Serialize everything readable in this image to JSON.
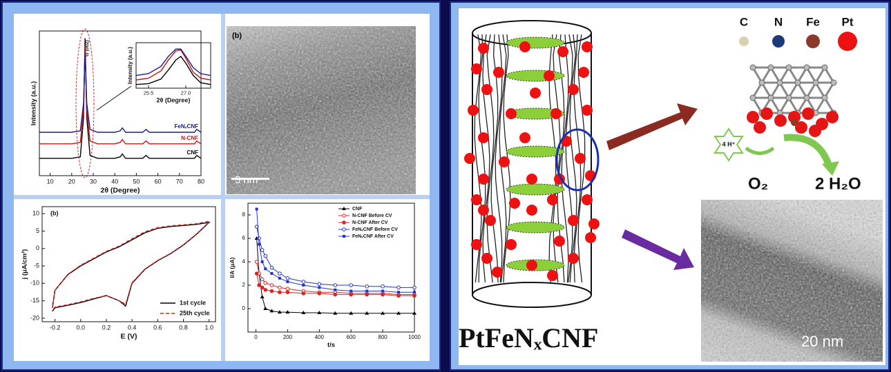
{
  "chart_data": [
    {
      "type": "line",
      "xlabel": "2θ (Degree)",
      "ylabel": "Intensity (a.u.)",
      "peak_label": "G (002)",
      "xlim": [
        5,
        80
      ],
      "xticks": [
        10,
        20,
        30,
        40,
        50,
        60,
        70,
        80
      ],
      "ylim": [
        0,
        100
      ],
      "legend": "inline",
      "x": [
        5,
        15,
        20,
        24,
        25.5,
        26.2,
        27,
        28.5,
        32,
        40,
        42.5,
        43.5,
        45,
        53,
        54.5,
        56,
        70,
        77,
        78,
        80
      ],
      "series": [
        {
          "name": "CNF",
          "color": "#000000",
          "values": [
            12,
            12,
            12,
            13,
            40,
            95,
            40,
            14,
            12,
            12,
            13,
            15,
            12,
            12,
            14,
            12,
            12,
            12,
            14,
            12
          ]
        },
        {
          "name": "N-CNF",
          "color": "#cc1111",
          "values": [
            22,
            22,
            22,
            23,
            45,
            90,
            45,
            24,
            22,
            22,
            23,
            25,
            22,
            22,
            24,
            22,
            22,
            22,
            24,
            22
          ]
        },
        {
          "name": "FeNₓCNF",
          "color": "#1a1a8c",
          "values": [
            30,
            30,
            30,
            31,
            50,
            85,
            50,
            32,
            30,
            30,
            31,
            33,
            30,
            30,
            32,
            30,
            30,
            30,
            32,
            30
          ]
        }
      ]
    },
    {
      "type": "line",
      "xlabel": "2θ (Degree)",
      "ylabel": "Intensity (a.u.)",
      "xlim": [
        25,
        28
      ],
      "xticks": [
        25.5,
        {
          "value": 27,
          "label": "27.0"
        }
      ],
      "ylim": [
        0,
        100
      ],
      "x": [
        25,
        25.5,
        26,
        26.3,
        26.6,
        26.8,
        27,
        27.3,
        27.6,
        28
      ],
      "series": [
        {
          "name": "CNF",
          "color": "#000000",
          "values": [
            8,
            10,
            20,
            40,
            62,
            70,
            55,
            28,
            12,
            8
          ]
        },
        {
          "name": "N-CNF",
          "color": "#cc1111",
          "values": [
            18,
            22,
            38,
            62,
            82,
            84,
            66,
            35,
            22,
            18
          ]
        },
        {
          "name": "FeNₓCNF",
          "color": "#1a1a8c",
          "values": [
            28,
            32,
            48,
            70,
            86,
            86,
            70,
            45,
            32,
            28
          ]
        }
      ]
    },
    {
      "type": "line",
      "xlabel": "E (V)",
      "ylabel": "j (μA/cm²)",
      "panel_label": "(b)",
      "xlim": [
        -0.3,
        1.05
      ],
      "xticks": [
        -0.2,
        {
          "value": 0,
          "label": "0.0"
        },
        0.2,
        0.4,
        0.6,
        0.8,
        {
          "value": 1,
          "label": "1.0"
        }
      ],
      "ylim": [
        -21,
        12
      ],
      "yticks": [
        10,
        5,
        0,
        -5,
        -10,
        -15,
        -20
      ],
      "legend": "lower right",
      "x": [
        -0.22,
        -0.2,
        -0.1,
        0,
        0.1,
        0.2,
        0.3,
        0.4,
        0.5,
        0.6,
        0.7,
        0.8,
        0.9,
        1.0,
        1.0,
        0.9,
        0.8,
        0.7,
        0.6,
        0.5,
        0.4,
        0.35,
        0.3,
        0.2,
        0.1,
        0,
        -0.1,
        -0.2,
        -0.22
      ],
      "series": [
        {
          "name": "1st cycle",
          "color": "#000000",
          "values": [
            -17,
            -12,
            -7.5,
            -5,
            -3,
            -1,
            0.5,
            2.5,
            4.5,
            5.8,
            6.3,
            6.6,
            6.9,
            7.5,
            7.5,
            4,
            1,
            -1.5,
            -3.5,
            -6,
            -10,
            -16.5,
            -15,
            -13.5,
            -14.5,
            -15.5,
            -16.3,
            -17,
            -18
          ]
        },
        {
          "name": "25th cycle",
          "color": "#dd2222",
          "dash": true,
          "values": [
            -17,
            -12,
            -7.4,
            -4.8,
            -2.8,
            -0.8,
            0.7,
            2.8,
            4.8,
            6,
            6.5,
            6.8,
            7.1,
            7.8,
            7.6,
            4.1,
            1.1,
            -1.4,
            -3.4,
            -5.9,
            -9.8,
            -16,
            -15,
            -13.5,
            -14.3,
            -15.3,
            -16.1,
            -16.8,
            -17.8
          ]
        }
      ]
    },
    {
      "type": "line",
      "xlabel": "t/s",
      "ylabel": "I/A (μA)",
      "xlim": [
        -50,
        1000
      ],
      "xticks": [
        0,
        200,
        400,
        600,
        800,
        1000
      ],
      "ylim": [
        -2,
        9
      ],
      "yticks": [
        0,
        2,
        4,
        6,
        8
      ],
      "legend": "upper right",
      "x": [
        5,
        20,
        40,
        60,
        100,
        150,
        200,
        300,
        400,
        500,
        600,
        700,
        800,
        900,
        1000
      ],
      "series": [
        {
          "name": "CNF",
          "color": "#000000",
          "marker": "triangle",
          "values": [
            6,
            3,
            1,
            0,
            -0.2,
            -0.3,
            -0.3,
            -0.35,
            -0.35,
            -0.4,
            -0.4,
            -0.4,
            -0.4,
            -0.4,
            -0.4
          ]
        },
        {
          "name": "N-CNF Before CV",
          "color": "#dd2222",
          "marker": "circle-open",
          "values": [
            4,
            3,
            2.5,
            2.2,
            2,
            1.8,
            1.7,
            1.5,
            1.4,
            1.4,
            1.3,
            1.3,
            1.3,
            1.2,
            1.2
          ]
        },
        {
          "name": "N-CNF After CV",
          "color": "#dd2222",
          "marker": "circle",
          "values": [
            3,
            2,
            1.8,
            1.6,
            1.5,
            1.4,
            1.4,
            1.3,
            1.3,
            1.2,
            1.2,
            1.2,
            1.2,
            1.1,
            1.1
          ]
        },
        {
          "name": "FeNₓCNF Before CV",
          "color": "#2233cc",
          "marker": "circle-open",
          "values": [
            7,
            6,
            5,
            4.5,
            3.5,
            3,
            2.6,
            2.3,
            2.1,
            2,
            2,
            1.9,
            1.9,
            1.8,
            1.8
          ]
        },
        {
          "name": "FeNₓCNF After CV",
          "color": "#2233cc",
          "marker": "square",
          "values": [
            8.5,
            5.5,
            4,
            3.4,
            3,
            2.6,
            2.3,
            2,
            1.8,
            1.6,
            1.5,
            1.5,
            1.5,
            1.4,
            1.4
          ]
        }
      ]
    }
  ],
  "tem": {
    "panel_label": "(b)",
    "scale_bar": "5 nm"
  },
  "diagram": {
    "atom_legend": [
      "C",
      "N",
      "Fe",
      "Pt"
    ],
    "proton": "4 H⁺",
    "reactant": "O₂",
    "product": "2 H₂O",
    "material": "PtFeNₓCNF",
    "scale_bar": "20 nm"
  }
}
